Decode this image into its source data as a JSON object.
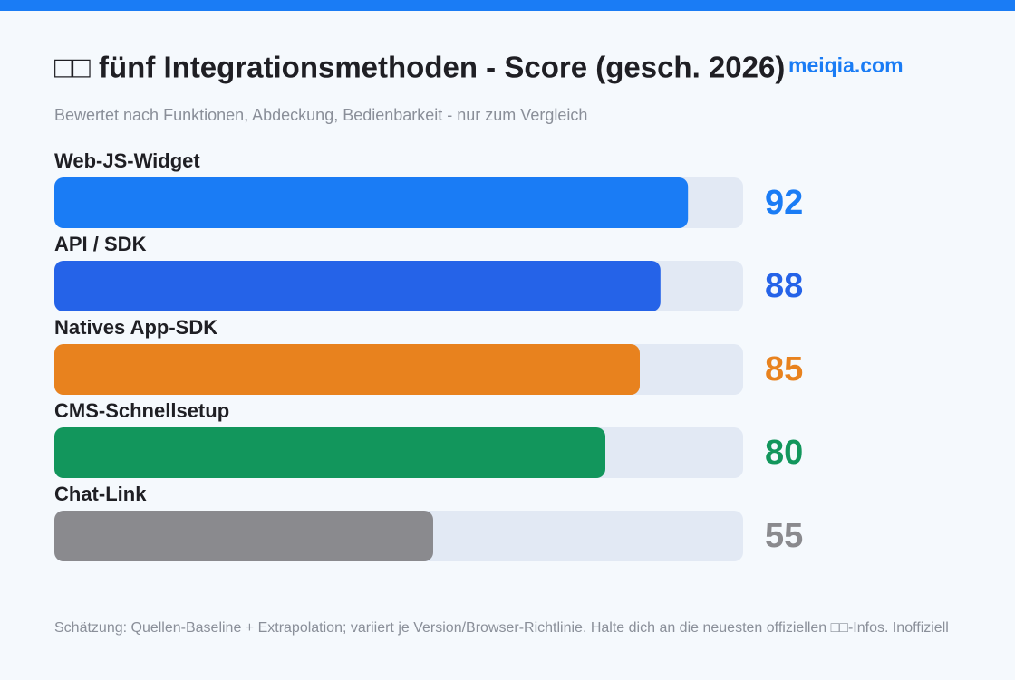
{
  "chart_data": {
    "type": "bar",
    "orientation": "horizontal",
    "title": "□□ fünf Integrationsmethoden - Score (gesch. 2026)",
    "subtitle": "Bewertet nach Funktionen, Abdeckung, Bedienbarkeit - nur zum Vergleich",
    "watermark": "meiqia.com",
    "footnote": "Schätzung: Quellen-Baseline + Extrapolation; variiert je Version/Browser-Richtlinie. Halte dich an die neuesten offiziellen □□-Infos. Inoffiziell",
    "categories": [
      "Web-JS-Widget",
      "API / SDK",
      "Natives App-SDK",
      "CMS-Schnellsetup",
      "Chat-Link"
    ],
    "values": [
      92,
      88,
      85,
      80,
      55
    ],
    "colors": [
      "#1a7cf5",
      "#2563e8",
      "#e8821e",
      "#12965c",
      "#8a8a8e"
    ],
    "track_color": "#e2e9f4",
    "xlim": [
      0,
      100
    ]
  }
}
